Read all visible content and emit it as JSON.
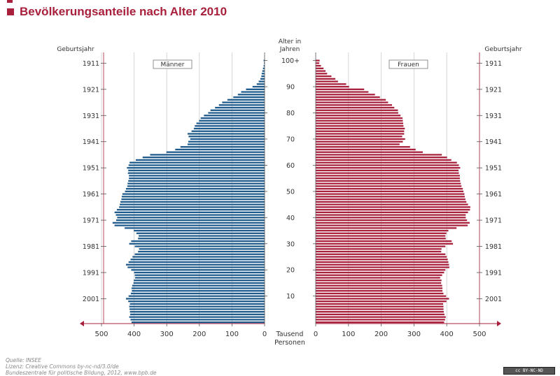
{
  "title": "Bevölkerungsanteile nach Alter 2010",
  "labels": {
    "left_axis_title": "Geburtsjahr",
    "right_axis_title": "Geburtsjahr",
    "center_axis_title_1": "Alter in",
    "center_axis_title_2": "Jahren",
    "x_unit_1": "Tausend",
    "x_unit_2": "Personen",
    "men_label": "Männer",
    "women_label": "Frauen"
  },
  "footer": {
    "source": "Quelle: INSEE",
    "license": "Lizenz: Creative Commons by-nc-nd/3.0/de",
    "extra": "Bundeszentrale für politische Bildung, 2012, www.bpb.de",
    "badge": "cc BY-NC-ND"
  },
  "colors": {
    "title": "#a8203c",
    "men": "#1f5a8c",
    "women": "#a8203c",
    "grid": "#cccccc"
  },
  "chart_data": {
    "type": "bar",
    "orientation": "horizontal-population-pyramid",
    "title": "Bevölkerungsanteile nach Alter 2010",
    "xlabel": "Tausend Personen",
    "ylabel": "Alter in Jahren",
    "xlim": [
      0,
      500
    ],
    "x_ticks": [
      0,
      100,
      200,
      300,
      400,
      500
    ],
    "age_ticks": [
      10,
      20,
      30,
      40,
      50,
      60,
      70,
      80,
      90,
      "100+"
    ],
    "birth_year_ticks": [
      2001,
      1991,
      1981,
      1971,
      1961,
      1951,
      1941,
      1931,
      1921,
      1911
    ],
    "ages": [
      0,
      1,
      2,
      3,
      4,
      5,
      6,
      7,
      8,
      9,
      10,
      11,
      12,
      13,
      14,
      15,
      16,
      17,
      18,
      19,
      20,
      21,
      22,
      23,
      24,
      25,
      26,
      27,
      28,
      29,
      30,
      31,
      32,
      33,
      34,
      35,
      36,
      37,
      38,
      39,
      40,
      41,
      42,
      43,
      44,
      45,
      46,
      47,
      48,
      49,
      50,
      51,
      52,
      53,
      54,
      55,
      56,
      57,
      58,
      59,
      60,
      61,
      62,
      63,
      64,
      65,
      66,
      67,
      68,
      69,
      70,
      71,
      72,
      73,
      74,
      75,
      76,
      77,
      78,
      79,
      80,
      81,
      82,
      83,
      84,
      85,
      86,
      87,
      88,
      89,
      90,
      91,
      92,
      93,
      94,
      95,
      96,
      97,
      98,
      99,
      100
    ],
    "series": [
      {
        "name": "Männer",
        "values": [
          408,
          411,
          415,
          412,
          413,
          414,
          415,
          413,
          418,
          425,
          417,
          410,
          407,
          408,
          406,
          402,
          401,
          397,
          398,
          400,
          409,
          420,
          425,
          417,
          411,
          405,
          398,
          388,
          385,
          398,
          415,
          409,
          388,
          386,
          393,
          401,
          429,
          460,
          466,
          455,
          452,
          456,
          460,
          453,
          446,
          444,
          442,
          439,
          438,
          436,
          428,
          425,
          421,
          420,
          418,
          416,
          416,
          419,
          418,
          422,
          417,
          414,
          395,
          374,
          351,
          301,
          274,
          258,
          236,
          234,
          228,
          233,
          236,
          224,
          217,
          214,
          209,
          201,
          196,
          186,
          173,
          166,
          152,
          140,
          130,
          114,
          96,
          82,
          72,
          57,
          37,
          24,
          18,
          13,
          10,
          9,
          7,
          5,
          3,
          2,
          3
        ]
      },
      {
        "name": "Frauen",
        "values": [
          392,
          395,
          397,
          393,
          391,
          390,
          390,
          389,
          399,
          407,
          398,
          390,
          387,
          387,
          386,
          383,
          384,
          380,
          386,
          392,
          396,
          408,
          407,
          405,
          403,
          400,
          396,
          383,
          384,
          396,
          419,
          415,
          397,
          396,
          399,
          405,
          430,
          464,
          470,
          462,
          458,
          458,
          465,
          471,
          472,
          465,
          460,
          457,
          455,
          454,
          451,
          449,
          445,
          443,
          441,
          440,
          440,
          437,
          436,
          441,
          437,
          431,
          414,
          401,
          385,
          327,
          305,
          288,
          256,
          266,
          273,
          264,
          270,
          270,
          272,
          268,
          267,
          266,
          265,
          259,
          252,
          251,
          240,
          233,
          221,
          214,
          196,
          181,
          161,
          148,
          102,
          93,
          68,
          60,
          48,
          35,
          30,
          24,
          16,
          11,
          12
        ]
      }
    ]
  }
}
